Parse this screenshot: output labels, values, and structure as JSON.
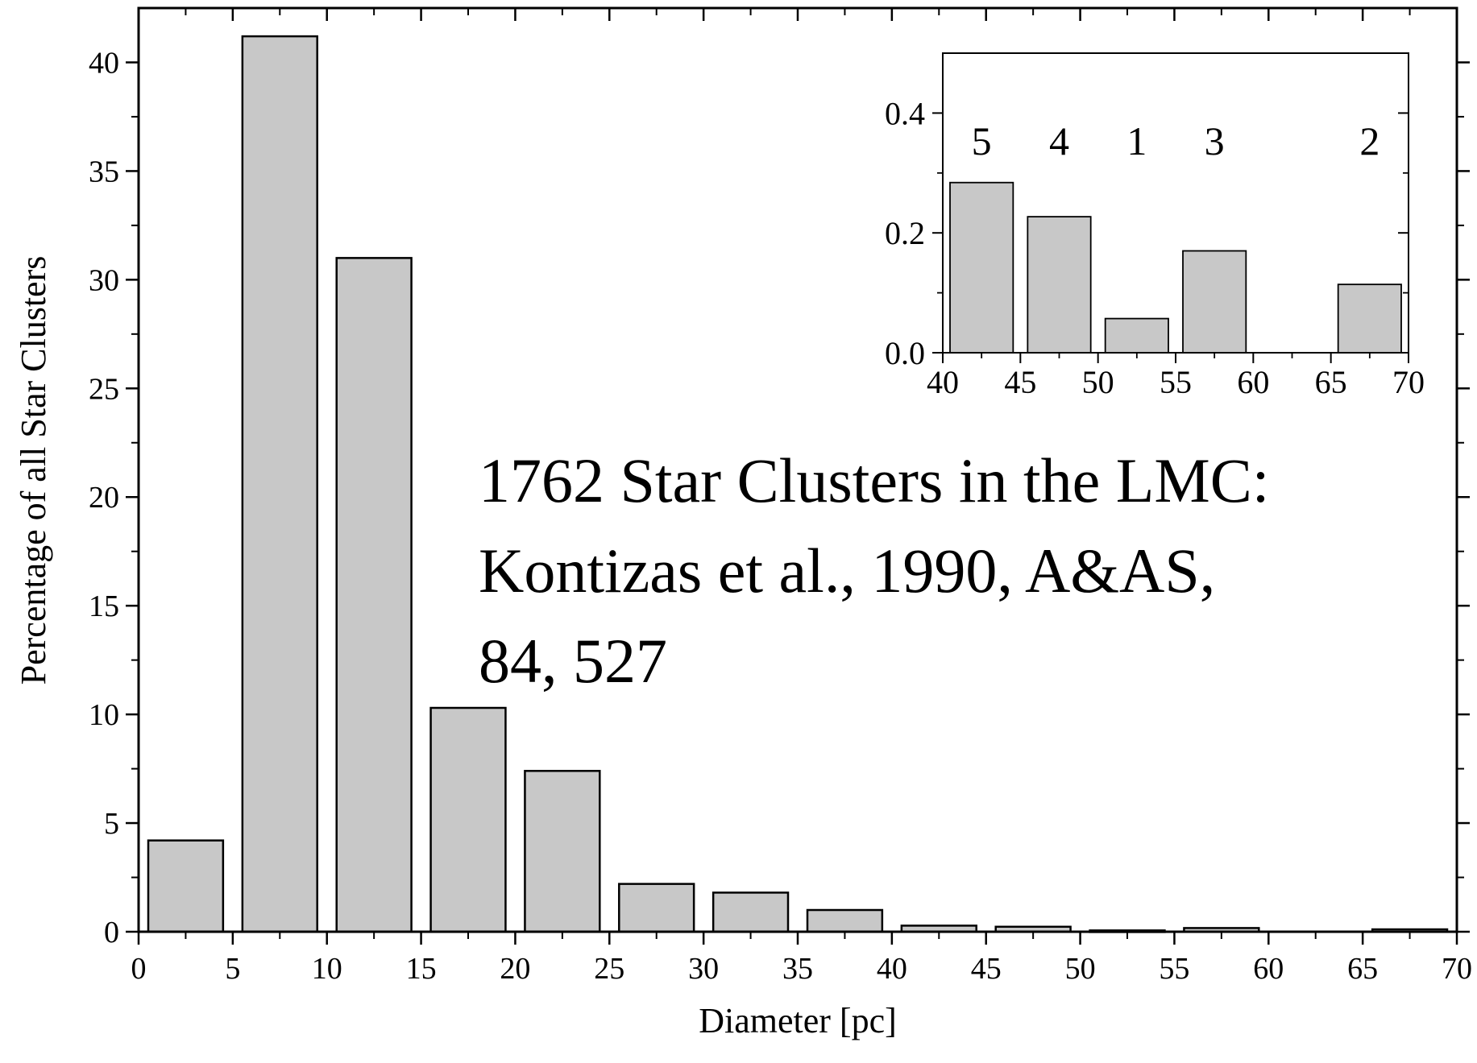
{
  "chart_data": [
    {
      "type": "bar",
      "xlabel": "Diameter [pc]",
      "ylabel": "Percentage of all Star Clusters",
      "xlim": [
        0,
        70
      ],
      "ylim": [
        0,
        42.5
      ],
      "xticks": [
        "0",
        "5",
        "10",
        "15",
        "20",
        "25",
        "30",
        "35",
        "40",
        "45",
        "50",
        "55",
        "60",
        "65",
        "70"
      ],
      "yticks": [
        "0",
        "5",
        "10",
        "15",
        "20",
        "25",
        "30",
        "35",
        "40"
      ],
      "bin_width": 5,
      "bins": [
        {
          "x0": 0,
          "x1": 5,
          "value": 4.2
        },
        {
          "x0": 5,
          "x1": 10,
          "value": 41.2
        },
        {
          "x0": 10,
          "x1": 15,
          "value": 31.0
        },
        {
          "x0": 15,
          "x1": 20,
          "value": 10.3
        },
        {
          "x0": 20,
          "x1": 25,
          "value": 7.4
        },
        {
          "x0": 25,
          "x1": 30,
          "value": 2.2
        },
        {
          "x0": 30,
          "x1": 35,
          "value": 1.8
        },
        {
          "x0": 35,
          "x1": 40,
          "value": 1.0
        },
        {
          "x0": 40,
          "x1": 45,
          "value": 0.28
        },
        {
          "x0": 45,
          "x1": 50,
          "value": 0.23
        },
        {
          "x0": 50,
          "x1": 55,
          "value": 0.06
        },
        {
          "x0": 55,
          "x1": 60,
          "value": 0.17
        },
        {
          "x0": 60,
          "x1": 65,
          "value": 0
        },
        {
          "x0": 65,
          "x1": 70,
          "value": 0.11
        }
      ],
      "bar_color": "#c8c8c8",
      "edge_color": "#000000",
      "annotation": [
        "1762 Star Clusters in the LMC:",
        "Kontizas et al., 1990, A&AS,",
        "84, 527"
      ],
      "grid": false
    },
    {
      "type": "bar",
      "xlim": [
        40,
        70
      ],
      "ylim": [
        0,
        0.5
      ],
      "xticks": [
        "40",
        "45",
        "50",
        "55",
        "60",
        "65",
        "70"
      ],
      "yticks": [
        "0.0",
        "0.2",
        "0.4"
      ],
      "bins": [
        {
          "x0": 40,
          "x1": 45,
          "value": 0.284,
          "count_label": "5"
        },
        {
          "x0": 45,
          "x1": 50,
          "value": 0.227,
          "count_label": "4"
        },
        {
          "x0": 50,
          "x1": 55,
          "value": 0.057,
          "count_label": "1"
        },
        {
          "x0": 55,
          "x1": 60,
          "value": 0.17,
          "count_label": "3"
        },
        {
          "x0": 60,
          "x1": 65,
          "value": 0,
          "count_label": ""
        },
        {
          "x0": 65,
          "x1": 70,
          "value": 0.114,
          "count_label": "2"
        }
      ],
      "bar_color": "#c8c8c8",
      "edge_color": "#000000",
      "grid": false
    }
  ]
}
